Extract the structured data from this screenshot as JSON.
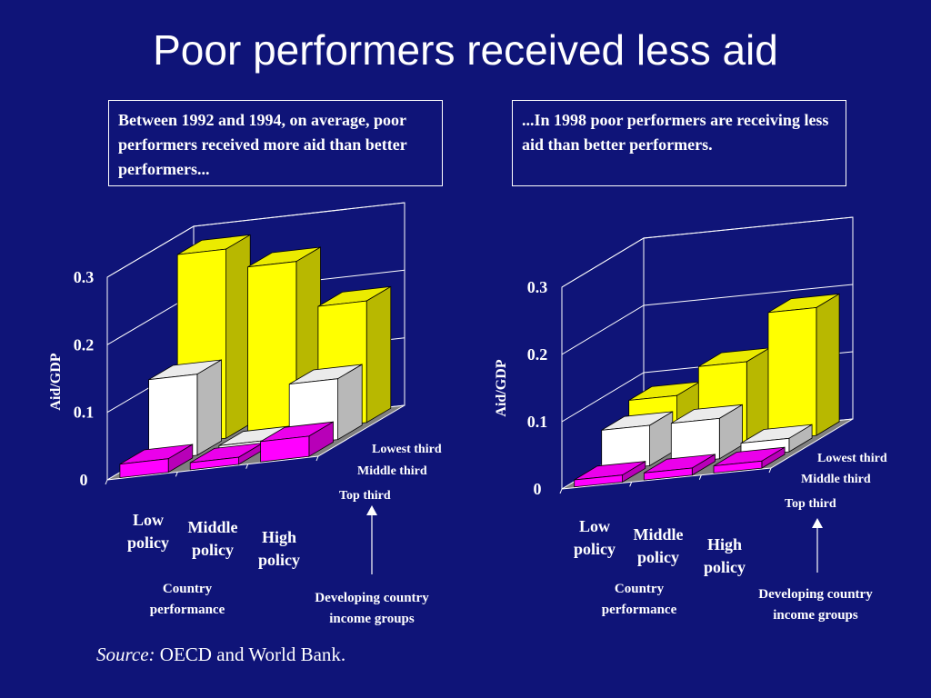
{
  "title": "Poor performers received less aid",
  "captions": {
    "left": "Between 1992 and 1994, on average, poor performers received more aid than better performers...",
    "right": "...In 1998 poor performers are receiving less aid than better performers."
  },
  "source": {
    "label": "Source:",
    "text": "OECD and World Bank."
  },
  "colors": {
    "background": "#0f1478",
    "lowest_third": "#ffff00",
    "middle_third": "#ffffff",
    "top_third": "#ff00ff",
    "floor": "#808080"
  },
  "chart_data": [
    {
      "type": "bar",
      "ylabel": "Aid/GDP",
      "ylim": [
        0,
        0.3
      ],
      "yticks": [
        "0",
        "0.1",
        "0.2",
        "0.3"
      ],
      "categories": [
        "Low policy",
        "Middle policy",
        "High policy"
      ],
      "xaxis_title": "Country performance",
      "depth_axis_title": "Developing country income groups",
      "series": [
        {
          "name": "Lowest third",
          "values": [
            0.28,
            0.25,
            0.18
          ]
        },
        {
          "name": "Middle third",
          "values": [
            0.12,
            0.01,
            0.09
          ]
        },
        {
          "name": "Top third",
          "values": [
            0.02,
            0.0,
            0.03
          ]
        }
      ]
    },
    {
      "type": "bar",
      "ylabel": "Aid/GDP",
      "ylim": [
        0,
        0.3
      ],
      "yticks": [
        "0",
        "0.1",
        "0.2",
        "0.3"
      ],
      "categories": [
        "Low policy",
        "Middle policy",
        "High policy"
      ],
      "xaxis_title": "Country performance",
      "depth_axis_title": "Developing country income groups",
      "series": [
        {
          "name": "Lowest third",
          "values": [
            0.08,
            0.12,
            0.19
          ]
        },
        {
          "name": "Middle third",
          "values": [
            0.06,
            0.06,
            0.02
          ]
        },
        {
          "name": "Top third",
          "values": [
            0.01,
            0.01,
            0.01
          ]
        }
      ]
    }
  ]
}
